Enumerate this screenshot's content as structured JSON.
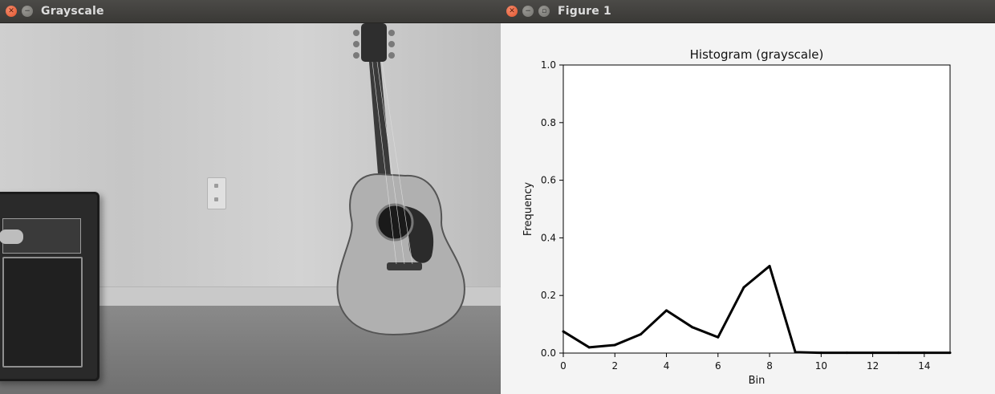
{
  "left_window": {
    "title": "Grayscale",
    "buttons": [
      "close-icon",
      "minimize-icon"
    ]
  },
  "right_window": {
    "title": "Figure 1",
    "buttons": [
      "close-icon",
      "minimize-icon",
      "maximize-icon"
    ]
  },
  "colors": {
    "close_button": "#e2552d",
    "titlebar": "#3f3e3b",
    "plot_line": "#000000",
    "figure_bg": "#f4f4f4"
  },
  "chart_data": {
    "type": "line",
    "title": "Histogram (grayscale)",
    "xlabel": "Bin",
    "ylabel": "Frequency",
    "x": [
      0,
      1,
      2,
      3,
      4,
      5,
      6,
      7,
      8,
      9,
      10,
      11,
      12,
      13,
      14,
      15
    ],
    "series": [
      {
        "values": [
          0.075,
          0.02,
          0.028,
          0.065,
          0.148,
          0.09,
          0.055,
          0.228,
          0.302,
          0.003,
          0.001,
          0.001,
          0.001,
          0.001,
          0.001,
          0.001
        ]
      }
    ],
    "xlim": [
      0,
      15
    ],
    "ylim": [
      0,
      1.0
    ],
    "xticks": [
      0,
      2,
      4,
      6,
      8,
      10,
      12,
      14
    ],
    "yticks": [
      0.0,
      0.2,
      0.4,
      0.6,
      0.8,
      1.0
    ],
    "xtick_labels": [
      "0",
      "2",
      "4",
      "6",
      "8",
      "10",
      "12",
      "14"
    ],
    "ytick_labels": [
      "0.0",
      "0.2",
      "0.4",
      "0.6",
      "0.8",
      "1.0"
    ],
    "grid": false,
    "legend": "none"
  }
}
